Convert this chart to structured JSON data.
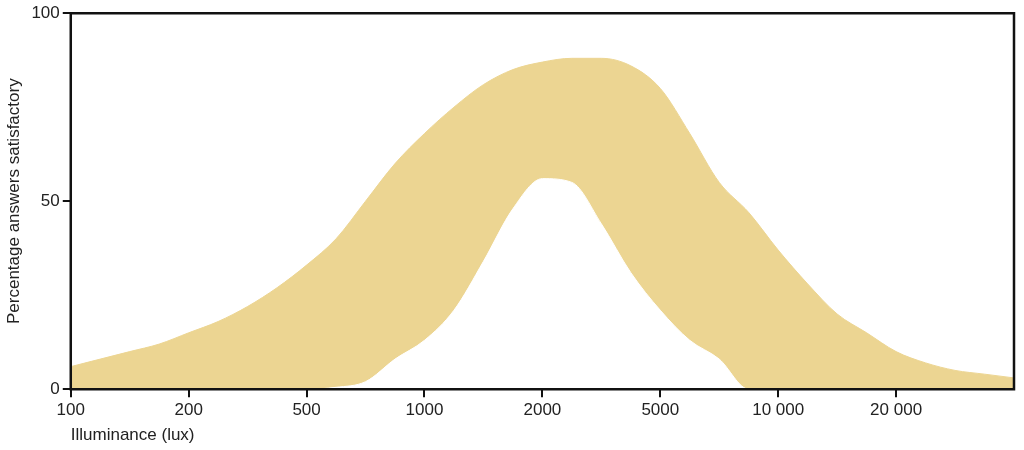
{
  "chart_data": {
    "type": "area",
    "xlabel": "Illuminance (lux)",
    "ylabel": "Percentage answers satisfactory",
    "categories": [
      "100",
      null,
      null,
      null,
      "200",
      null,
      null,
      null,
      "500",
      null,
      null,
      null,
      "1000",
      null,
      null,
      null,
      "2000",
      null,
      null,
      null,
      "5000",
      null,
      null,
      null,
      "10 000",
      null,
      null,
      null,
      "20 000",
      null,
      null,
      null,
      null
    ],
    "series": [
      {
        "color": "#ecd592",
        "values": [
          6,
          8,
          10,
          12,
          15,
          18,
          22,
          27,
          33,
          40,
          50,
          60,
          68,
          75,
          81,
          85,
          87,
          88,
          88,
          86,
          80,
          68,
          55,
          47,
          37,
          28,
          20,
          15,
          10,
          7,
          5,
          4,
          3
        ]
      },
      {
        "color": "#ffffff",
        "values": [
          0,
          0,
          0,
          0,
          0,
          0,
          0,
          0,
          0,
          0.5,
          2,
          8,
          13,
          21,
          34,
          48,
          56,
          55,
          44,
          31,
          21,
          13,
          8,
          0,
          0,
          0,
          0,
          0,
          0,
          0,
          0,
          0,
          0
        ]
      }
    ],
    "ylim": [
      0,
      100
    ],
    "yticks": [
      0,
      50,
      100
    ],
    "grid": false,
    "legend": false
  }
}
